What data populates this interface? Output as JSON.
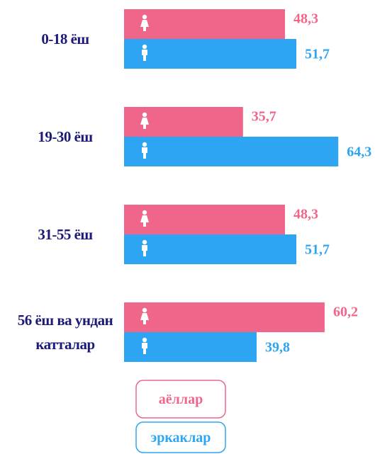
{
  "chart_data": {
    "type": "bar",
    "orientation": "horizontal",
    "categories": [
      "0-18 ёш",
      "19-30 ёш",
      "31-55 ёш",
      "56 ёш ва ундан катталар"
    ],
    "series": [
      {
        "name": "аёллар",
        "color": "#f0668a",
        "values": [
          48.3,
          35.7,
          48.3,
          60.2
        ],
        "value_labels": [
          "48,3",
          "35,7",
          "48,3",
          "60,2"
        ]
      },
      {
        "name": "эркаклар",
        "color": "#2ea5f2",
        "values": [
          51.7,
          64.3,
          51.7,
          39.8
        ],
        "value_labels": [
          "51,7",
          "64,3",
          "51,7",
          "39,8"
        ]
      }
    ]
  }
}
